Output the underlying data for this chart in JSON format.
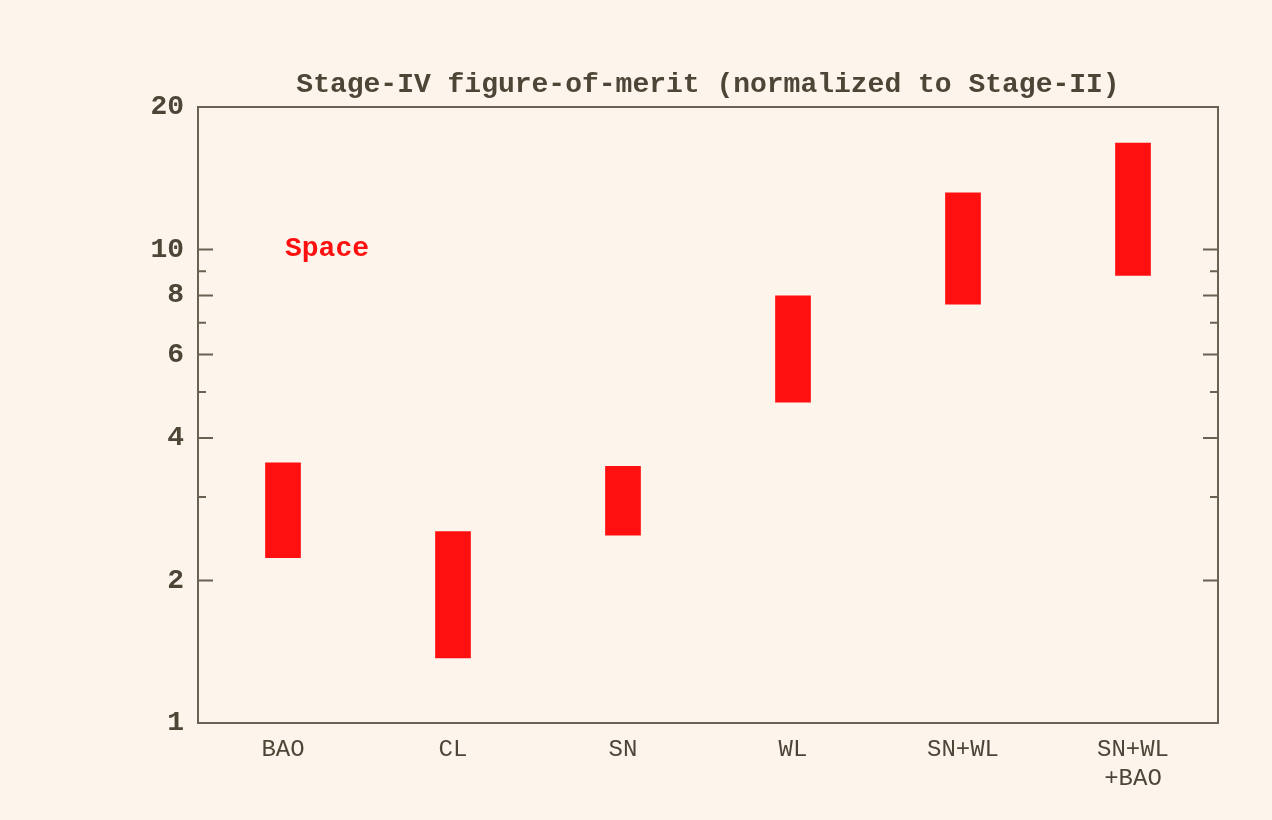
{
  "chart_data": {
    "type": "bar",
    "title": "Stage-IV figure-of-merit (normalized to Stage-II)",
    "categories": [
      "BAO",
      "CL",
      "SN",
      "WL",
      "SN+WL",
      "SN+WL\n+BAO"
    ],
    "values": [
      1.32,
      1.17,
      1.0,
      3.25,
      5.55,
      8.0
    ],
    "base": [
      2.23,
      1.37,
      2.49,
      4.75,
      7.65,
      8.8
    ],
    "color": "#ff1010",
    "annotations": [
      "Space"
    ],
    "log": "y",
    "ylim": [
      1,
      20
    ],
    "yticks": [
      1,
      2,
      {
        "value": 3,
        "label": null
      },
      4,
      {
        "value": 5,
        "label": null
      },
      6,
      {
        "value": 7,
        "label": null
      },
      8,
      {
        "value": 9,
        "label": null
      },
      10,
      20
    ]
  }
}
